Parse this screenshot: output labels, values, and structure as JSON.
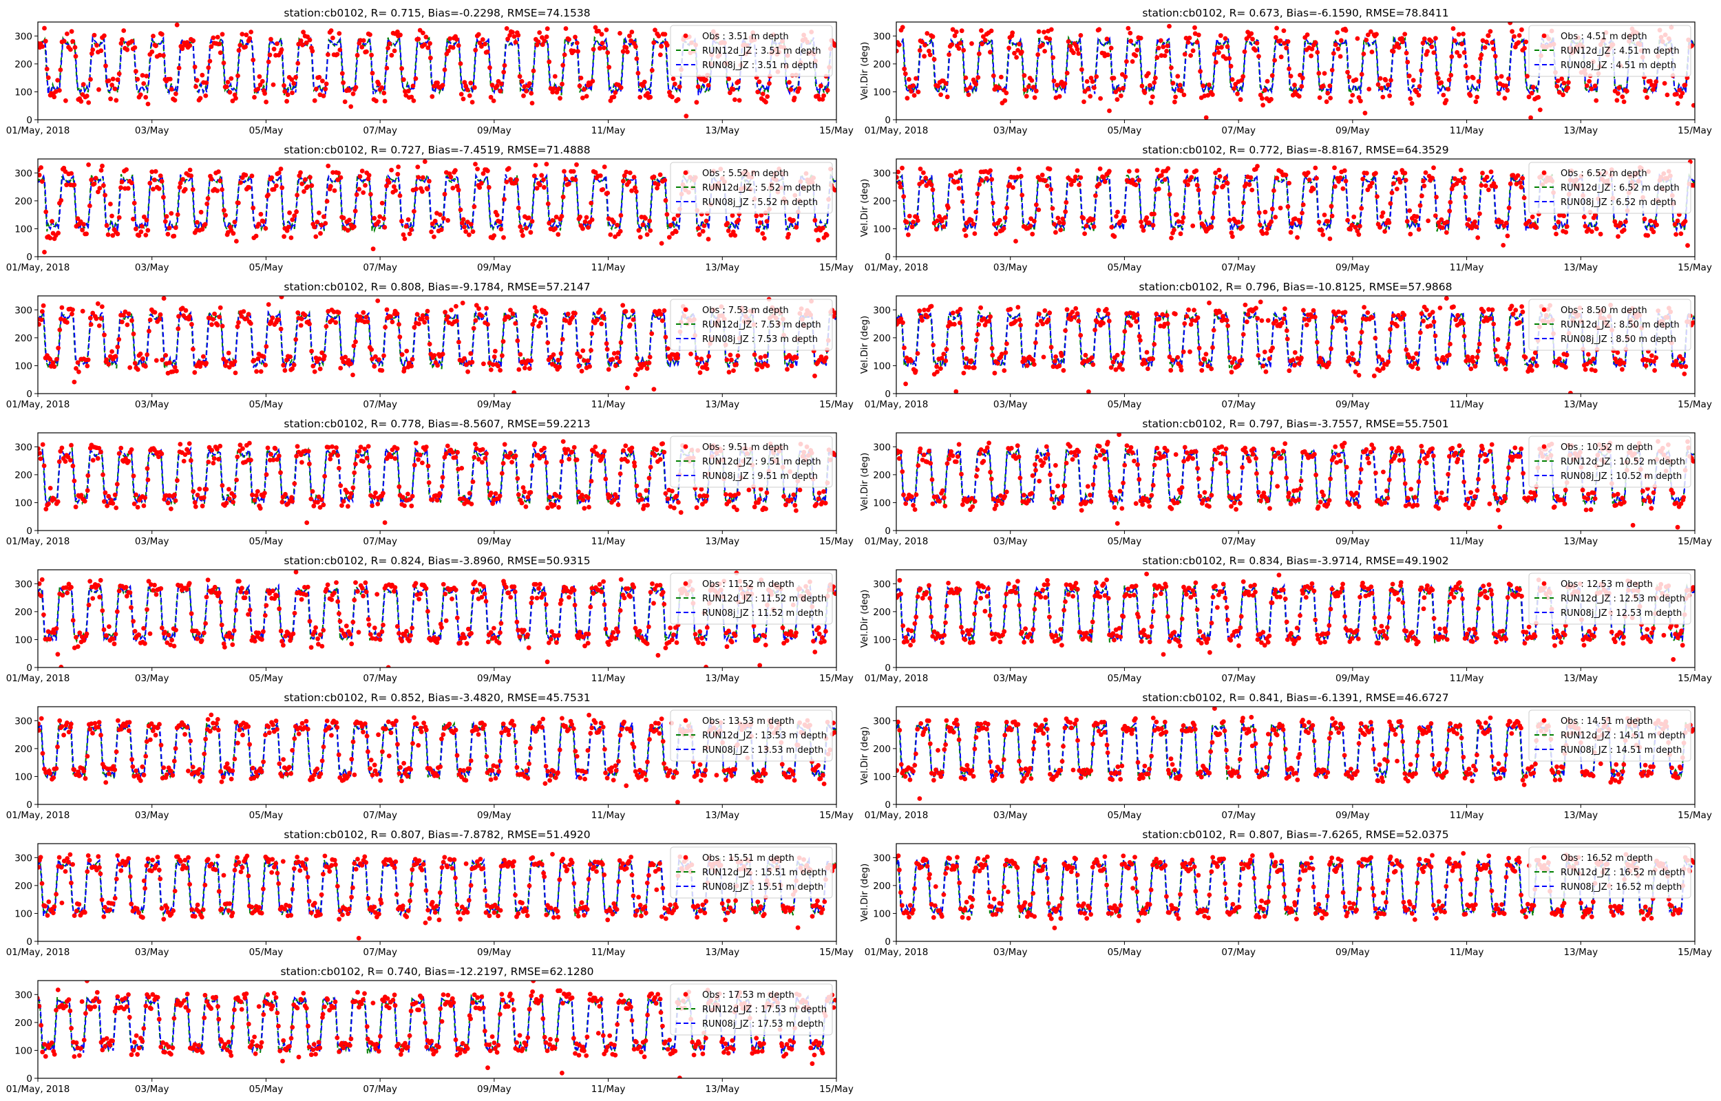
{
  "figure": {
    "station": "cb0102",
    "ylabel_right": "Vel.Dir (deg)",
    "colors": {
      "obs": "#ff0000",
      "run12d": "#008000",
      "run08j": "#0000ff",
      "axis": "#000000",
      "legend_border": "#cccccc"
    },
    "legend_placement": "top-right",
    "grid": false
  },
  "chart_data": [
    {
      "type": "scatter",
      "title": "station:cb0102, R= 0.715, Bias=-0.2298, RMSE=74.1538",
      "depth": "3.51",
      "xlabel": "",
      "ylabel": "",
      "ylim": [
        0,
        350
      ],
      "yticks": [
        0,
        100,
        200,
        300
      ],
      "xrange_days": [
        "2018-05-01",
        "2018-05-15"
      ],
      "xtick_labels": [
        "01/May, 2018",
        "03/May",
        "05/May",
        "07/May",
        "09/May",
        "11/May",
        "13/May",
        "15/May"
      ],
      "legend": [
        "Obs : 3.51 m depth",
        "RUN12d_JZ : 3.51 m depth",
        "RUN08j_JZ : 3.51 m depth"
      ],
      "series": [
        {
          "name": "Obs",
          "style": "red dots"
        },
        {
          "name": "RUN12d_JZ",
          "style": "green dashed"
        },
        {
          "name": "RUN08j_JZ",
          "style": "blue dashed"
        }
      ],
      "obs_noise": 45
    },
    {
      "type": "scatter",
      "title": "station:cb0102, R= 0.673, Bias=-6.1590, RMSE=78.8411",
      "depth": "4.51",
      "xlabel": "",
      "ylabel": "Vel.Dir (deg)",
      "ylim": [
        0,
        350
      ],
      "yticks": [
        0,
        100,
        200,
        300
      ],
      "xrange_days": [
        "2018-05-01",
        "2018-05-15"
      ],
      "xtick_labels": [
        "01/May, 2018",
        "03/May",
        "05/May",
        "07/May",
        "09/May",
        "11/May",
        "13/May",
        "15/May"
      ],
      "legend": [
        "Obs : 4.51 m depth",
        "RUN12d_JZ : 4.51 m depth",
        "RUN08j_JZ : 4.51 m depth"
      ],
      "series": [
        {
          "name": "Obs",
          "style": "red dots"
        },
        {
          "name": "RUN12d_JZ",
          "style": "green dashed"
        },
        {
          "name": "RUN08j_JZ",
          "style": "blue dashed"
        }
      ],
      "obs_noise": 48
    },
    {
      "type": "scatter",
      "title": "station:cb0102, R= 0.727, Bias=-7.4519, RMSE=71.4888",
      "depth": "5.52",
      "xlabel": "",
      "ylabel": "",
      "ylim": [
        0,
        350
      ],
      "yticks": [
        0,
        100,
        200,
        300
      ],
      "xrange_days": [
        "2018-05-01",
        "2018-05-15"
      ],
      "xtick_labels": [
        "01/May, 2018",
        "03/May",
        "05/May",
        "07/May",
        "09/May",
        "11/May",
        "13/May",
        "15/May"
      ],
      "legend": [
        "Obs : 5.52 m depth",
        "RUN12d_JZ : 5.52 m depth",
        "RUN08j_JZ : 5.52 m depth"
      ],
      "series": [
        {
          "name": "Obs",
          "style": "red dots"
        },
        {
          "name": "RUN12d_JZ",
          "style": "green dashed"
        },
        {
          "name": "RUN08j_JZ",
          "style": "blue dashed"
        }
      ],
      "obs_noise": 42
    },
    {
      "type": "scatter",
      "title": "station:cb0102, R= 0.772, Bias=-8.8167, RMSE=64.3529",
      "depth": "6.52",
      "xlabel": "",
      "ylabel": "Vel.Dir (deg)",
      "ylim": [
        0,
        350
      ],
      "yticks": [
        0,
        100,
        200,
        300
      ],
      "xrange_days": [
        "2018-05-01",
        "2018-05-15"
      ],
      "xtick_labels": [
        "01/May, 2018",
        "03/May",
        "05/May",
        "07/May",
        "09/May",
        "11/May",
        "13/May",
        "15/May"
      ],
      "legend": [
        "Obs : 6.52 m depth",
        "RUN12d_JZ : 6.52 m depth",
        "RUN08j_JZ : 6.52 m depth"
      ],
      "series": [
        {
          "name": "Obs",
          "style": "red dots"
        },
        {
          "name": "RUN12d_JZ",
          "style": "green dashed"
        },
        {
          "name": "RUN08j_JZ",
          "style": "blue dashed"
        }
      ],
      "obs_noise": 36
    },
    {
      "type": "scatter",
      "title": "station:cb0102, R= 0.808, Bias=-9.1784, RMSE=57.2147",
      "depth": "7.53",
      "xlabel": "",
      "ylabel": "",
      "ylim": [
        0,
        350
      ],
      "yticks": [
        0,
        100,
        200,
        300
      ],
      "xrange_days": [
        "2018-05-01",
        "2018-05-15"
      ],
      "xtick_labels": [
        "01/May, 2018",
        "03/May",
        "05/May",
        "07/May",
        "09/May",
        "11/May",
        "13/May",
        "15/May"
      ],
      "legend": [
        "Obs : 7.53 m depth",
        "RUN12d_JZ : 7.53 m depth",
        "RUN08j_JZ : 7.53 m depth"
      ],
      "series": [
        {
          "name": "Obs",
          "style": "red dots"
        },
        {
          "name": "RUN12d_JZ",
          "style": "green dashed"
        },
        {
          "name": "RUN08j_JZ",
          "style": "blue dashed"
        }
      ],
      "obs_noise": 32
    },
    {
      "type": "scatter",
      "title": "station:cb0102, R= 0.796, Bias=-10.8125, RMSE=57.9868",
      "depth": "8.50",
      "xlabel": "",
      "ylabel": "Vel.Dir (deg)",
      "ylim": [
        0,
        350
      ],
      "yticks": [
        0,
        100,
        200,
        300
      ],
      "xrange_days": [
        "2018-05-01",
        "2018-05-15"
      ],
      "xtick_labels": [
        "01/May, 2018",
        "03/May",
        "05/May",
        "07/May",
        "09/May",
        "11/May",
        "13/May",
        "15/May"
      ],
      "legend": [
        "Obs : 8.50 m depth",
        "RUN12d_JZ : 8.50 m depth",
        "RUN08j_JZ : 8.50 m depth"
      ],
      "series": [
        {
          "name": "Obs",
          "style": "red dots"
        },
        {
          "name": "RUN12d_JZ",
          "style": "green dashed"
        },
        {
          "name": "RUN08j_JZ",
          "style": "blue dashed"
        }
      ],
      "obs_noise": 32
    },
    {
      "type": "scatter",
      "title": "station:cb0102, R= 0.778, Bias=-8.5607, RMSE=59.2213",
      "depth": "9.51",
      "xlabel": "",
      "ylabel": "",
      "ylim": [
        0,
        350
      ],
      "yticks": [
        0,
        100,
        200,
        300
      ],
      "xrange_days": [
        "2018-05-01",
        "2018-05-15"
      ],
      "xtick_labels": [
        "01/May, 2018",
        "03/May",
        "05/May",
        "07/May",
        "09/May",
        "11/May",
        "13/May",
        "15/May"
      ],
      "legend": [
        "Obs : 9.51 m depth",
        "RUN12d_JZ : 9.51 m depth",
        "RUN08j_JZ : 9.51 m depth"
      ],
      "series": [
        {
          "name": "Obs",
          "style": "red dots"
        },
        {
          "name": "RUN12d_JZ",
          "style": "green dashed"
        },
        {
          "name": "RUN08j_JZ",
          "style": "blue dashed"
        }
      ],
      "obs_noise": 30
    },
    {
      "type": "scatter",
      "title": "station:cb0102, R= 0.797, Bias=-3.7557, RMSE=55.7501",
      "depth": "10.52",
      "xlabel": "",
      "ylabel": "Vel.Dir (deg)",
      "ylim": [
        0,
        350
      ],
      "yticks": [
        0,
        100,
        200,
        300
      ],
      "xrange_days": [
        "2018-05-01",
        "2018-05-15"
      ],
      "xtick_labels": [
        "01/May, 2018",
        "03/May",
        "05/May",
        "07/May",
        "09/May",
        "11/May",
        "13/May",
        "15/May"
      ],
      "legend": [
        "Obs : 10.52 m depth",
        "RUN12d_JZ : 10.52 m depth",
        "RUN08j_JZ : 10.52 m depth"
      ],
      "series": [
        {
          "name": "Obs",
          "style": "red dots"
        },
        {
          "name": "RUN12d_JZ",
          "style": "green dashed"
        },
        {
          "name": "RUN08j_JZ",
          "style": "blue dashed"
        }
      ],
      "obs_noise": 30
    },
    {
      "type": "scatter",
      "title": "station:cb0102, R= 0.824, Bias=-3.8960, RMSE=50.9315",
      "depth": "11.52",
      "xlabel": "",
      "ylabel": "",
      "ylim": [
        0,
        350
      ],
      "yticks": [
        0,
        100,
        200,
        300
      ],
      "xrange_days": [
        "2018-05-01",
        "2018-05-15"
      ],
      "xtick_labels": [
        "01/May, 2018",
        "03/May",
        "05/May",
        "07/May",
        "09/May",
        "11/May",
        "13/May",
        "15/May"
      ],
      "legend": [
        "Obs : 11.52 m depth",
        "RUN12d_JZ : 11.52 m depth",
        "RUN08j_JZ : 11.52 m depth"
      ],
      "series": [
        {
          "name": "Obs",
          "style": "red dots"
        },
        {
          "name": "RUN12d_JZ",
          "style": "green dashed"
        },
        {
          "name": "RUN08j_JZ",
          "style": "blue dashed"
        }
      ],
      "obs_noise": 28
    },
    {
      "type": "scatter",
      "title": "station:cb0102, R= 0.834, Bias=-3.9714, RMSE=49.1902",
      "depth": "12.53",
      "xlabel": "",
      "ylabel": "Vel.Dir (deg)",
      "ylim": [
        0,
        350
      ],
      "yticks": [
        0,
        100,
        200,
        300
      ],
      "xrange_days": [
        "2018-05-01",
        "2018-05-15"
      ],
      "xtick_labels": [
        "01/May, 2018",
        "03/May",
        "05/May",
        "07/May",
        "09/May",
        "11/May",
        "13/May",
        "15/May"
      ],
      "legend": [
        "Obs : 12.53 m depth",
        "RUN12d_JZ : 12.53 m depth",
        "RUN08j_JZ : 12.53 m depth"
      ],
      "series": [
        {
          "name": "Obs",
          "style": "red dots"
        },
        {
          "name": "RUN12d_JZ",
          "style": "green dashed"
        },
        {
          "name": "RUN08j_JZ",
          "style": "blue dashed"
        }
      ],
      "obs_noise": 26
    },
    {
      "type": "scatter",
      "title": "station:cb0102, R= 0.852, Bias=-3.4820, RMSE=45.7531",
      "depth": "13.53",
      "xlabel": "",
      "ylabel": "",
      "ylim": [
        0,
        350
      ],
      "yticks": [
        0,
        100,
        200,
        300
      ],
      "xrange_days": [
        "2018-05-01",
        "2018-05-15"
      ],
      "xtick_labels": [
        "01/May, 2018",
        "03/May",
        "05/May",
        "07/May",
        "09/May",
        "11/May",
        "13/May",
        "15/May"
      ],
      "legend": [
        "Obs : 13.53 m depth",
        "RUN12d_JZ : 13.53 m depth",
        "RUN08j_JZ : 13.53 m depth"
      ],
      "series": [
        {
          "name": "Obs",
          "style": "red dots"
        },
        {
          "name": "RUN12d_JZ",
          "style": "green dashed"
        },
        {
          "name": "RUN08j_JZ",
          "style": "blue dashed"
        }
      ],
      "obs_noise": 24
    },
    {
      "type": "scatter",
      "title": "station:cb0102, R= 0.841, Bias=-6.1391, RMSE=46.6727",
      "depth": "14.51",
      "xlabel": "",
      "ylabel": "Vel.Dir (deg)",
      "ylim": [
        0,
        350
      ],
      "yticks": [
        0,
        100,
        200,
        300
      ],
      "xrange_days": [
        "2018-05-01",
        "2018-05-15"
      ],
      "xtick_labels": [
        "01/May, 2018",
        "03/May",
        "05/May",
        "07/May",
        "09/May",
        "11/May",
        "13/May",
        "15/May"
      ],
      "legend": [
        "Obs : 14.51 m depth",
        "RUN12d_JZ : 14.51 m depth",
        "RUN08j_JZ : 14.51 m depth"
      ],
      "series": [
        {
          "name": "Obs",
          "style": "red dots"
        },
        {
          "name": "RUN12d_JZ",
          "style": "green dashed"
        },
        {
          "name": "RUN08j_JZ",
          "style": "blue dashed"
        }
      ],
      "obs_noise": 24
    },
    {
      "type": "scatter",
      "title": "station:cb0102, R= 0.807, Bias=-7.8782, RMSE=51.4920",
      "depth": "15.51",
      "xlabel": "",
      "ylabel": "",
      "ylim": [
        0,
        350
      ],
      "yticks": [
        0,
        100,
        200,
        300
      ],
      "xrange_days": [
        "2018-05-01",
        "2018-05-15"
      ],
      "xtick_labels": [
        "01/May, 2018",
        "03/May",
        "05/May",
        "07/May",
        "09/May",
        "11/May",
        "13/May",
        "15/May"
      ],
      "legend": [
        "Obs : 15.51 m depth",
        "RUN12d_JZ : 15.51 m depth",
        "RUN08j_JZ : 15.51 m depth"
      ],
      "series": [
        {
          "name": "Obs",
          "style": "red dots"
        },
        {
          "name": "RUN12d_JZ",
          "style": "green dashed"
        },
        {
          "name": "RUN08j_JZ",
          "style": "blue dashed"
        }
      ],
      "obs_noise": 24
    },
    {
      "type": "scatter",
      "title": "station:cb0102, R= 0.807, Bias=-7.6265, RMSE=52.0375",
      "depth": "16.52",
      "xlabel": "",
      "ylabel": "Vel.Dir (deg)",
      "ylim": [
        0,
        350
      ],
      "yticks": [
        0,
        100,
        200,
        300
      ],
      "xrange_days": [
        "2018-05-01",
        "2018-05-15"
      ],
      "xtick_labels": [
        "01/May, 2018",
        "03/May",
        "05/May",
        "07/May",
        "09/May",
        "11/May",
        "13/May",
        "15/May"
      ],
      "legend": [
        "Obs : 16.52 m depth",
        "RUN12d_JZ : 16.52 m depth",
        "RUN08j_JZ : 16.52 m depth"
      ],
      "series": [
        {
          "name": "Obs",
          "style": "red dots"
        },
        {
          "name": "RUN12d_JZ",
          "style": "green dashed"
        },
        {
          "name": "RUN08j_JZ",
          "style": "blue dashed"
        }
      ],
      "obs_noise": 24
    },
    {
      "type": "scatter",
      "title": "station:cb0102, R= 0.740, Bias=-12.2197, RMSE=62.1280",
      "depth": "17.53",
      "xlabel": "",
      "ylabel": "",
      "ylim": [
        0,
        350
      ],
      "yticks": [
        0,
        100,
        200,
        300
      ],
      "xrange_days": [
        "2018-05-01",
        "2018-05-15"
      ],
      "xtick_labels": [
        "01/May, 2018",
        "03/May",
        "05/May",
        "07/May",
        "09/May",
        "11/May",
        "13/May",
        "15/May"
      ],
      "legend": [
        "Obs : 17.53 m depth",
        "RUN12d_JZ : 17.53 m depth",
        "RUN08j_JZ : 17.53 m depth"
      ],
      "series": [
        {
          "name": "Obs",
          "style": "red dots"
        },
        {
          "name": "RUN12d_JZ",
          "style": "green dashed"
        },
        {
          "name": "RUN08j_JZ",
          "style": "blue dashed"
        }
      ],
      "obs_noise": 30
    }
  ]
}
